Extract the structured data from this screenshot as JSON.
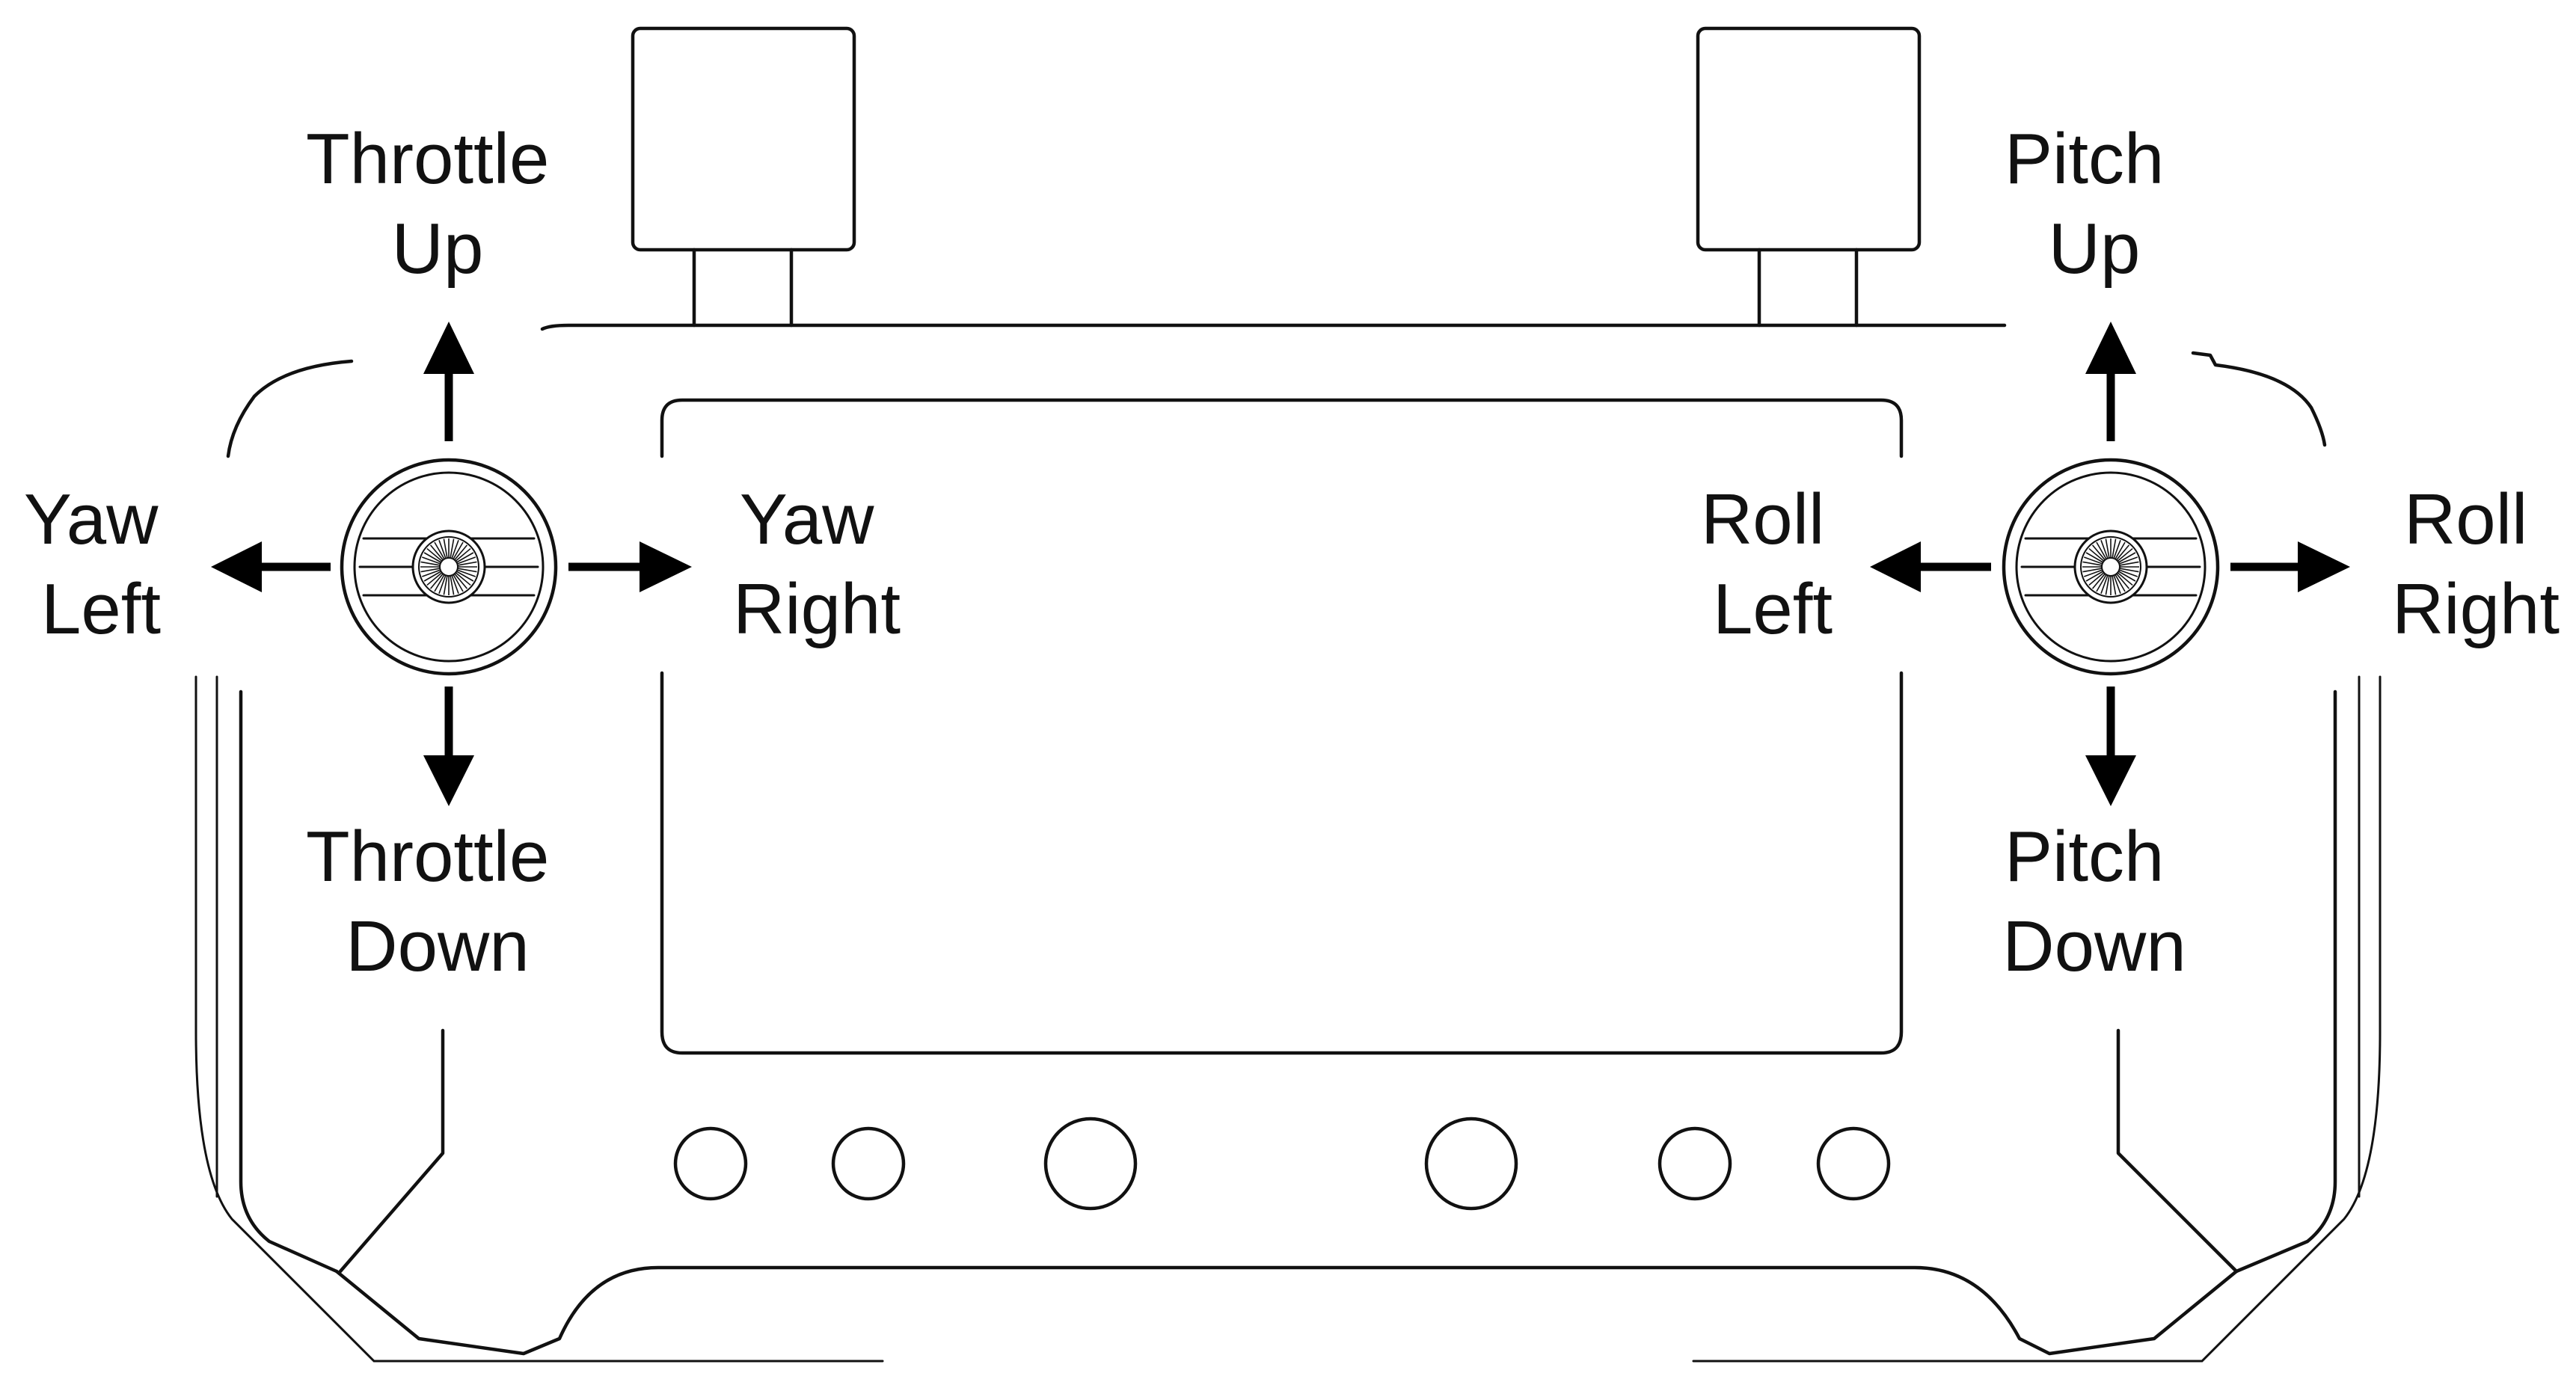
{
  "labels": {
    "throttle_up": [
      "Throttle",
      "Up"
    ],
    "throttle_down": [
      "Throttle",
      "Down"
    ],
    "yaw_left": [
      "Yaw",
      "Left"
    ],
    "yaw_right": [
      "Yaw",
      "Right"
    ],
    "pitch_up": [
      "Pitch",
      "Up"
    ],
    "pitch_down": [
      "Pitch",
      "Down"
    ],
    "roll_left": [
      "Roll",
      "Left"
    ],
    "roll_right": [
      "Roll",
      "Right"
    ]
  },
  "colors": {
    "line": "#111111",
    "arrow": "#000000",
    "background": "#ffffff"
  },
  "icons": {
    "left_stick": "joystick-icon",
    "right_stick": "joystick-icon",
    "arrows": "arrow-icon"
  }
}
